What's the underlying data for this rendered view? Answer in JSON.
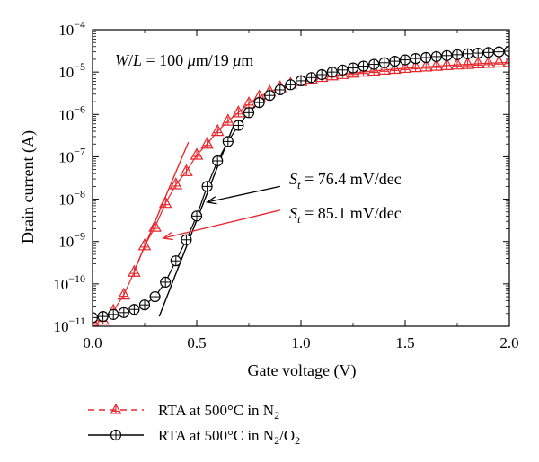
{
  "chart_data": {
    "type": "scatter",
    "title": "",
    "xlabel": "Gate voltage (V)",
    "ylabel": "Drain current (A)",
    "xlim": [
      0,
      2
    ],
    "ylim": [
      1e-11,
      0.0001
    ],
    "yscale": "log",
    "grid": false,
    "legend_position": "below",
    "x_ticks": [
      {
        "value": 0.0,
        "label": "0.0"
      },
      {
        "value": 0.5,
        "label": "0.5"
      },
      {
        "value": 1.0,
        "label": "1.0"
      },
      {
        "value": 1.5,
        "label": "1.5"
      },
      {
        "value": 2.0,
        "label": "2.0"
      }
    ],
    "y_ticks": [
      {
        "value": 1e-11,
        "base": "10",
        "exp": "−11"
      },
      {
        "value": 1e-10,
        "base": "10",
        "exp": "−10"
      },
      {
        "value": 1e-09,
        "base": "10",
        "exp": "−9"
      },
      {
        "value": 1e-08,
        "base": "10",
        "exp": "−8"
      },
      {
        "value": 1e-07,
        "base": "10",
        "exp": "−7"
      },
      {
        "value": 1e-06,
        "base": "10",
        "exp": "−6"
      },
      {
        "value": 1e-05,
        "base": "10",
        "exp": "−5"
      },
      {
        "value": 0.0001,
        "base": "10",
        "exp": "−4"
      }
    ],
    "annotations": {
      "wl": {
        "parts": [
          "W",
          "/",
          "L",
          " = 100 ",
          "μ",
          "m/19 ",
          "μ",
          "m"
        ]
      },
      "st_black": {
        "symbol": "S",
        "sub": "t",
        "text": " = 76.4 mV/dec"
      },
      "st_red": {
        "symbol": "S",
        "sub": "t",
        "text": " = 85.1 mV/dec"
      }
    },
    "series": [
      {
        "name_parts": [
          "RTA at 500°C in N",
          "2",
          ""
        ],
        "color": "#e8262b",
        "marker": "triangle",
        "x": [
          0.0,
          0.05,
          0.1,
          0.15,
          0.2,
          0.25,
          0.3,
          0.35,
          0.4,
          0.45,
          0.5,
          0.55,
          0.6,
          0.65,
          0.7,
          0.75,
          0.8,
          0.85,
          0.9,
          0.95,
          1.0,
          1.05,
          1.1,
          1.15,
          1.2,
          1.25,
          1.3,
          1.35,
          1.4,
          1.45,
          1.5,
          1.55,
          1.6,
          1.65,
          1.7,
          1.75,
          1.8,
          1.85,
          1.9,
          1.95,
          2.0
        ],
        "y": [
          1.3e-11,
          1.4e-11,
          2.3e-11,
          5.5e-11,
          1.9e-10,
          8e-10,
          2.2e-09,
          8e-09,
          2.2e-08,
          4.5e-08,
          1.1e-07,
          2e-07,
          4e-07,
          7e-07,
          1.1e-06,
          1.8e-06,
          2.6e-06,
          3.4e-06,
          4.3e-06,
          5.2e-06,
          6e-06,
          6.8e-06,
          7.5e-06,
          8.2e-06,
          8.8e-06,
          9.5e-06,
          1e-05,
          1.06e-05,
          1.12e-05,
          1.17e-05,
          1.23e-05,
          1.28e-05,
          1.33e-05,
          1.38e-05,
          1.43e-05,
          1.48e-05,
          1.52e-05,
          1.57e-05,
          1.61e-05,
          1.66e-05,
          1.7e-05
        ]
      },
      {
        "name_parts": [
          "RTA at 500°C in N",
          "2",
          "/O",
          "2",
          ""
        ],
        "color": "#000000",
        "marker": "circle-plus",
        "x": [
          0.0,
          0.05,
          0.1,
          0.15,
          0.2,
          0.25,
          0.3,
          0.35,
          0.4,
          0.45,
          0.5,
          0.55,
          0.6,
          0.65,
          0.7,
          0.75,
          0.8,
          0.85,
          0.9,
          0.95,
          1.0,
          1.05,
          1.1,
          1.15,
          1.2,
          1.25,
          1.3,
          1.35,
          1.4,
          1.45,
          1.5,
          1.55,
          1.6,
          1.65,
          1.7,
          1.75,
          1.8,
          1.85,
          1.9,
          1.95,
          2.0
        ],
        "y": [
          1.6e-11,
          1.7e-11,
          1.9e-11,
          2.1e-11,
          2.5e-11,
          3.2e-11,
          5e-11,
          1.1e-10,
          3.5e-10,
          1.1e-09,
          4e-09,
          2e-08,
          8e-08,
          2.3e-07,
          5.5e-07,
          1.1e-06,
          1.9e-06,
          2.8e-06,
          3.8e-06,
          5e-06,
          6.2e-06,
          7.4e-06,
          8.7e-06,
          1e-05,
          1.12e-05,
          1.25e-05,
          1.38e-05,
          1.52e-05,
          1.66e-05,
          1.8e-05,
          1.94e-05,
          2.08e-05,
          2.2e-05,
          2.32e-05,
          2.45e-05,
          2.57e-05,
          2.7e-05,
          2.8e-05,
          2.9e-05,
          3e-05,
          3.1e-05
        ]
      }
    ],
    "fit_lines": [
      {
        "color": "#e8262b",
        "x": [
          0.2,
          0.46
        ],
        "y": [
          2e-10,
          2.2e-07
        ]
      },
      {
        "color": "#000000",
        "x": [
          0.32,
          0.68
        ],
        "y": [
          1.7e-11,
          6e-07
        ]
      }
    ],
    "arrows": [
      {
        "color": "#000000",
        "from": [
          0.9,
          2e-08
        ],
        "to": [
          0.55,
          8.5e-09
        ]
      },
      {
        "color": "#e8262b",
        "from": [
          0.9,
          5.5e-09
        ],
        "to": [
          0.34,
          1.2e-09
        ]
      }
    ]
  }
}
